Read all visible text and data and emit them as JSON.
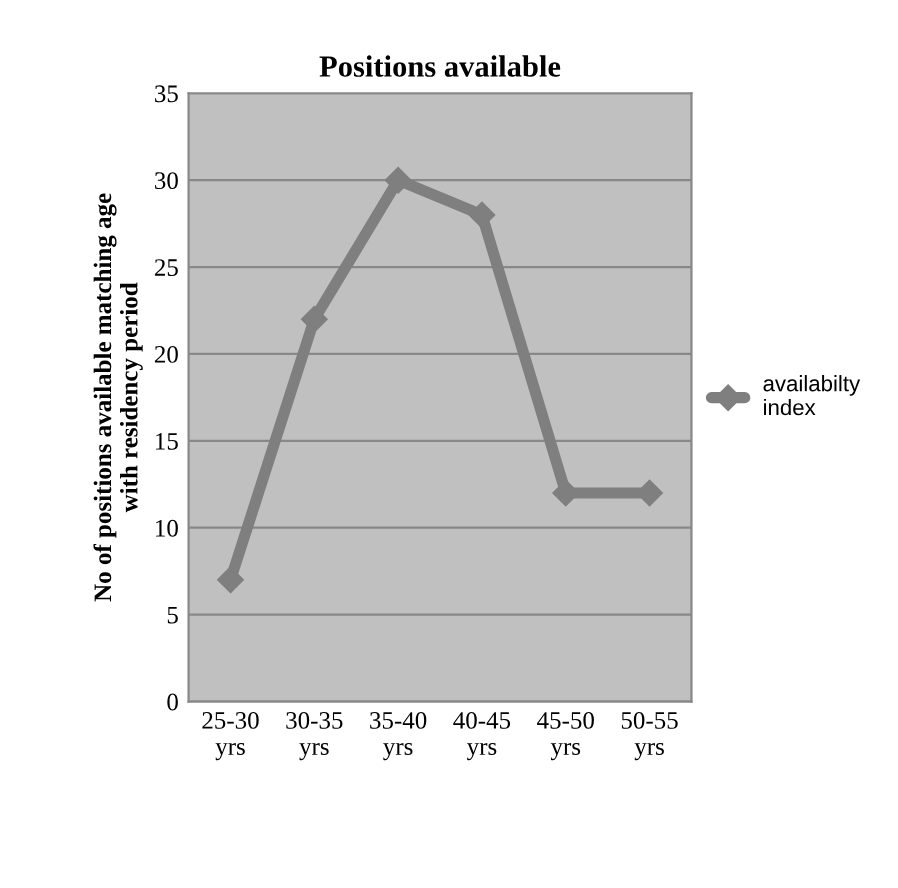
{
  "chart_data": {
    "type": "line",
    "title": "Positions available",
    "ylabel": "No of positions available matching age\nwith residency period",
    "categories": [
      "25-30\nyrs",
      "30-35\nyrs",
      "35-40\nyrs",
      "40-45\nyrs",
      "45-50\nyrs",
      "50-55\nyrs"
    ],
    "series": [
      {
        "name": "availabilty\nindex",
        "color": "#7f7f7f",
        "values": [
          7,
          22,
          30,
          28,
          12,
          12
        ]
      }
    ],
    "ylim": [
      0,
      35
    ],
    "yticks": [
      0,
      5,
      10,
      15,
      20,
      25,
      30,
      35
    ],
    "grid": "y",
    "legend": "right",
    "marker": "diamond",
    "line_style": "solid"
  }
}
